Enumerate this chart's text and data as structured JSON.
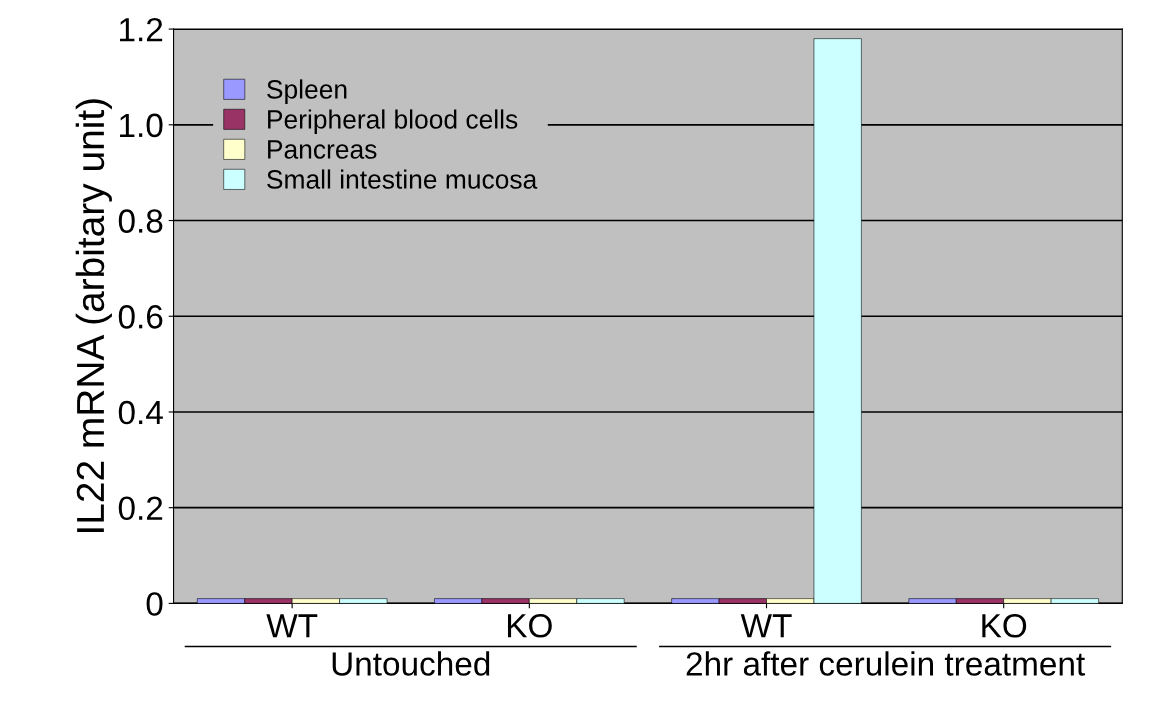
{
  "chart_data": {
    "type": "bar",
    "ylabel": "IL22 mRNA (arbitary unit)",
    "categories": [
      "WT",
      "KO",
      "WT",
      "KO"
    ],
    "series": [
      {
        "name": "Spleen",
        "color": "#9999ff",
        "values": [
          0.01,
          0.01,
          0.01,
          0.01
        ]
      },
      {
        "name": "Peripheral blood cells",
        "color": "#993366",
        "values": [
          0.01,
          0.01,
          0.01,
          0.01
        ]
      },
      {
        "name": "Pancreas",
        "color": "#ffffcc",
        "values": [
          0.01,
          0.01,
          0.01,
          0.01
        ]
      },
      {
        "name": "Small intestine mucosa",
        "color": "#ccffff",
        "values": [
          0.01,
          0.01,
          1.18,
          0.01
        ]
      }
    ],
    "ylim": [
      0,
      1.2
    ],
    "yticks": [
      0,
      0.2,
      0.4,
      0.6,
      0.8,
      {
        "value": 1.0,
        "label": "1.0"
      },
      1.2
    ],
    "annotations": [
      "Untouched",
      "2hr after cerulein treatment"
    ],
    "grid": "y",
    "legend": "top left"
  }
}
